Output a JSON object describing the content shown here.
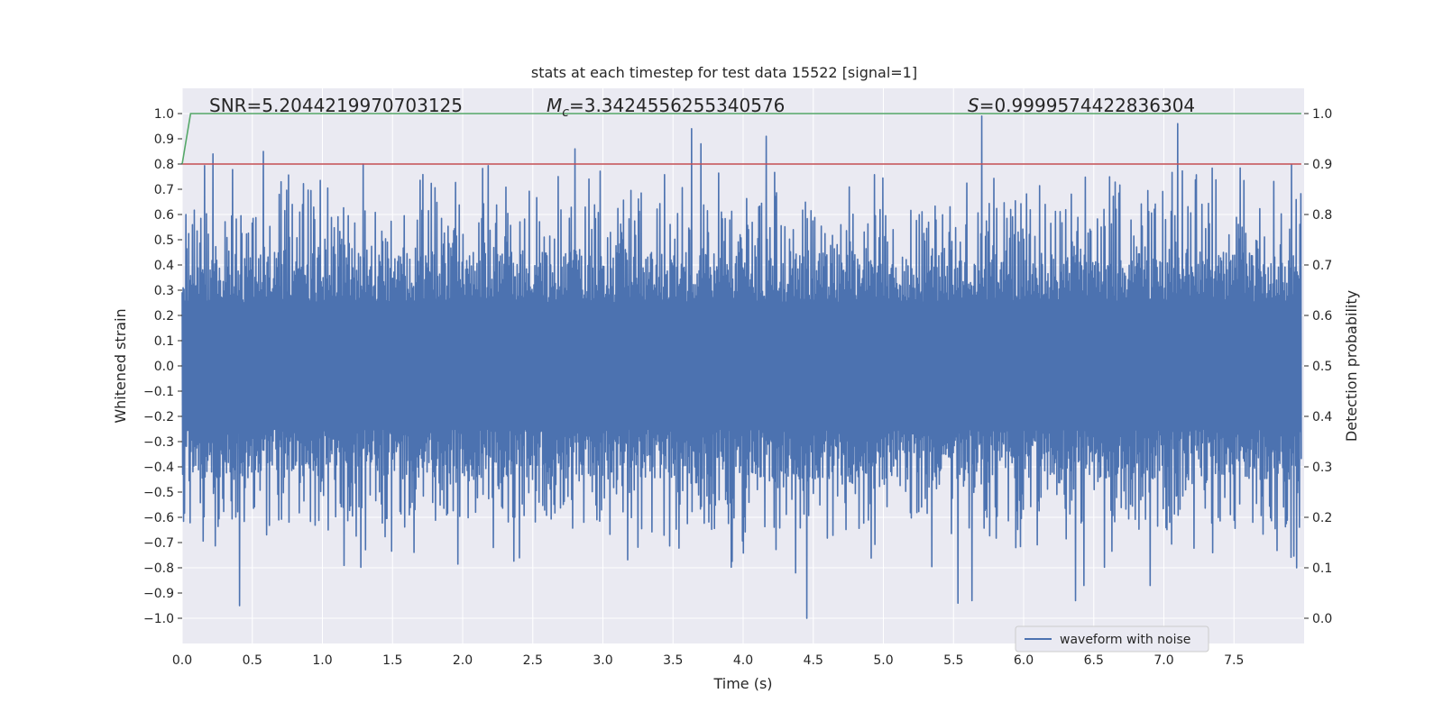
{
  "chart_data": {
    "type": "line",
    "title": "stats at each timestep for test data 15522 [signal=1]",
    "xlabel": "Time (s)",
    "ylabel_left": "Whitened strain",
    "ylabel_right": "Detection probability",
    "xlim": [
      0.0,
      8.0
    ],
    "ylim_left": [
      -1.1,
      1.1
    ],
    "ylim_right": [
      -0.05,
      1.05
    ],
    "x_ticks": [
      "0.0",
      "0.5",
      "1.0",
      "1.5",
      "2.0",
      "2.5",
      "3.0",
      "3.5",
      "4.0",
      "4.5",
      "5.0",
      "5.5",
      "6.0",
      "6.5",
      "7.0",
      "7.5"
    ],
    "y_ticks_left": [
      "1.0",
      "0.9",
      "0.8",
      "0.7",
      "0.6",
      "0.5",
      "0.4",
      "0.3",
      "0.2",
      "0.1",
      "0.0",
      "−0.1",
      "−0.2",
      "−0.3",
      "−0.4",
      "−0.5",
      "−0.6",
      "−0.7",
      "−0.8",
      "−0.9",
      "−1.0"
    ],
    "y_ticks_right": [
      "1.0",
      "0.9",
      "0.8",
      "0.7",
      "0.6",
      "0.5",
      "0.4",
      "0.3",
      "0.2",
      "0.1",
      "0.0"
    ],
    "annotations": {
      "snr": "SNR=5.2044219970703125",
      "mc_symbol": "M",
      "mc_sub": "c",
      "mc_value": "=3.3424556255340576",
      "s_symbol": "S",
      "s_value": "=0.9999574422836304"
    },
    "legend": {
      "label": "waveform with noise",
      "placement": "lower-right"
    },
    "series": [
      {
        "name": "waveform with noise",
        "axis": "left",
        "color": "#4c72b0",
        "description": "dense noise waveform, 8 s",
        "x_range": [
          0.0,
          7.98
        ],
        "typical_envelope": [
          -0.45,
          0.45
        ],
        "peaks": [
          {
            "x": 0.22,
            "y": 0.84
          },
          {
            "x": 0.58,
            "y": 0.85
          },
          {
            "x": 1.29,
            "y": 0.8
          },
          {
            "x": 3.63,
            "y": 0.94
          },
          {
            "x": 4.16,
            "y": 0.91
          },
          {
            "x": 5.7,
            "y": 0.99
          },
          {
            "x": 7.1,
            "y": 0.96
          },
          {
            "x": 3.7,
            "y": 0.88
          },
          {
            "x": 2.8,
            "y": 0.86
          }
        ],
        "troughs": [
          {
            "x": 0.41,
            "y": -0.95
          },
          {
            "x": 4.45,
            "y": -1.0
          },
          {
            "x": 5.53,
            "y": -0.94
          },
          {
            "x": 5.63,
            "y": -0.93
          },
          {
            "x": 6.37,
            "y": -0.93
          },
          {
            "x": 4.37,
            "y": -0.82
          },
          {
            "x": 6.9,
            "y": -0.87
          },
          {
            "x": 6.43,
            "y": -0.87
          }
        ]
      },
      {
        "name": "threshold",
        "axis": "right",
        "color": "#c44e52",
        "x": [
          0.0,
          7.98
        ],
        "y": [
          0.9,
          0.9
        ]
      },
      {
        "name": "detection probability",
        "axis": "right",
        "color": "#55a868",
        "x": [
          0.0,
          0.06,
          7.98
        ],
        "y": [
          0.9,
          1.0,
          1.0
        ]
      }
    ]
  }
}
